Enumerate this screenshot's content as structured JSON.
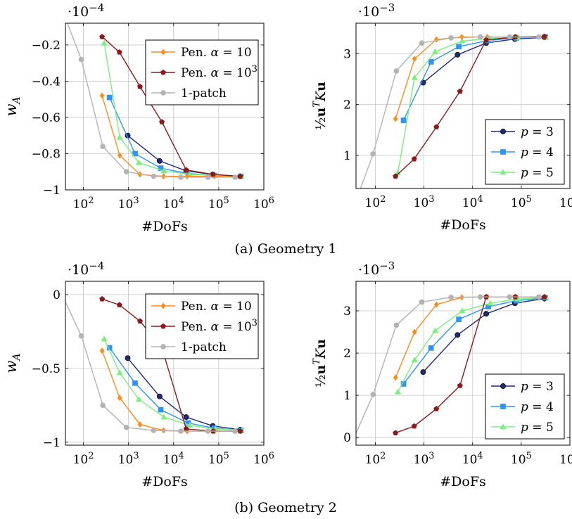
{
  "captions": [
    "(a) Geometry 1",
    "(b) Geometry 2"
  ],
  "colors": {
    "pen10": "#ff8c1a",
    "pen1000": "#8b1a1a",
    "patch1": "#b3b3b3",
    "p3": "#1e2a7a",
    "p4": "#2f93f5",
    "p5": "#7cf07c"
  },
  "chart_data": [
    {
      "type": "line",
      "panel": "(a) Geometry 1",
      "xscale": "log",
      "xlim": [
        40,
        1000000
      ],
      "ylim": [
        -1,
        -0.08
      ],
      "xlabel": "#DoFs",
      "ylabel": "w_A",
      "yscale_label": "·10^−4",
      "yticks": [
        -1,
        -0.8,
        -0.6,
        -0.4,
        -0.2
      ],
      "ytick_labels": [
        "−1",
        "−0.8",
        "−0.6",
        "−0.4",
        "−0.2"
      ],
      "xticks": [
        100,
        1000,
        10000,
        100000,
        1000000
      ],
      "xtick_labels": [
        "10^2",
        "10^3",
        "10^4",
        "10^5",
        "10^6"
      ],
      "grid": true,
      "legend_placement": "top-right",
      "series": [
        {
          "name": "p = 3",
          "key": "p3",
          "marker": "circle",
          "x": [
            960,
            4900,
            19000,
            74000,
            300000
          ],
          "y": [
            -0.7,
            -0.84,
            -0.895,
            -0.915,
            -0.925
          ]
        },
        {
          "name": "p = 4",
          "key": "p4",
          "marker": "square",
          "x": [
            380,
            1400,
            5200,
            21000,
            80000,
            310000
          ],
          "y": [
            -0.49,
            -0.8,
            -0.88,
            -0.91,
            -0.92,
            -0.925
          ]
        },
        {
          "name": "p = 5",
          "key": "p5",
          "marker": "triangle",
          "x": [
            290,
            640,
            1700,
            6100,
            23000,
            85000,
            320000
          ],
          "y": [
            -0.19,
            -0.71,
            -0.85,
            -0.895,
            -0.915,
            -0.92,
            -0.925
          ]
        },
        {
          "name": "Pen. α = 10",
          "key": "pen10",
          "marker": "diamond",
          "x": [
            260,
            640,
            1800,
            6000,
            20000,
            80000,
            300000
          ],
          "y": [
            -0.48,
            -0.81,
            -0.915,
            -0.925,
            -0.925,
            -0.925,
            -0.925
          ]
        },
        {
          "name": "Pen. α = 10^3",
          "key": "pen1000",
          "marker": "pentagon",
          "x": [
            260,
            630,
            1800,
            5500,
            19000,
            75000,
            300000
          ],
          "y": [
            -0.155,
            -0.24,
            -0.43,
            -0.625,
            -0.89,
            -0.915,
            -0.925
          ]
        },
        {
          "name": "1-patch",
          "key": "patch1",
          "marker": "circle",
          "x": [
            28,
            90,
            270,
            900,
            3600,
            14400,
            57600,
            230000
          ],
          "y": [
            0.05,
            -0.28,
            -0.76,
            -0.9,
            -0.925,
            -0.93,
            -0.93,
            -0.93
          ]
        }
      ]
    },
    {
      "type": "line",
      "panel": "(a) Geometry 1",
      "xscale": "log",
      "xlim": [
        40,
        1000000
      ],
      "ylim": [
        0.35,
        3.6
      ],
      "xlabel": "#DoFs",
      "ylabel": "½uᵀKu",
      "yscale_label": "·10^−3",
      "yticks": [
        1,
        2,
        3
      ],
      "ytick_labels": [
        "1",
        "2",
        "3"
      ],
      "xticks": [
        100,
        1000,
        10000,
        100000,
        1000000
      ],
      "xtick_labels": [
        "10^2",
        "10^3",
        "10^4",
        "10^5",
        "10^6"
      ],
      "grid": true,
      "legend_placement": "bottom-right",
      "series": [
        {
          "name": "p = 3",
          "key": "p3",
          "marker": "circle",
          "x": [
            960,
            4900,
            19000,
            74000,
            300000
          ],
          "y": [
            2.43,
            2.98,
            3.21,
            3.29,
            3.32
          ]
        },
        {
          "name": "p = 4",
          "key": "p4",
          "marker": "square",
          "x": [
            380,
            1400,
            5200,
            21000,
            80000,
            310000
          ],
          "y": [
            1.69,
            2.84,
            3.14,
            3.26,
            3.31,
            3.33
          ]
        },
        {
          "name": "p = 5",
          "key": "p5",
          "marker": "triangle",
          "x": [
            290,
            640,
            1700,
            6100,
            23000,
            85000,
            320000
          ],
          "y": [
            0.66,
            2.53,
            3.04,
            3.25,
            3.3,
            3.32,
            3.33
          ]
        },
        {
          "name": "Pen. α = 10",
          "key": "pen10",
          "marker": "diamond",
          "x": [
            260,
            640,
            1800,
            6000,
            20000,
            80000,
            300000
          ],
          "y": [
            1.72,
            2.9,
            3.28,
            3.33,
            3.33,
            3.33,
            3.33
          ]
        },
        {
          "name": "Pen. α = 10^3",
          "key": "pen1000",
          "marker": "pentagon",
          "x": [
            260,
            630,
            1800,
            5500,
            19000,
            75000,
            300000
          ],
          "y": [
            0.59,
            0.93,
            1.56,
            2.26,
            3.27,
            3.33,
            3.34
          ]
        },
        {
          "name": "1-patch",
          "key": "patch1",
          "marker": "circle",
          "x": [
            28,
            90,
            270,
            900,
            3600,
            14400,
            57600,
            230000
          ],
          "y": [
            -0.3,
            1.03,
            2.66,
            3.21,
            3.31,
            3.33,
            3.33,
            3.33
          ]
        }
      ]
    },
    {
      "type": "line",
      "panel": "(b) Geometry 2",
      "xscale": "log",
      "xlim": [
        40,
        1000000
      ],
      "ylim": [
        -1.02,
        0.09
      ],
      "xlabel": "#DoFs",
      "ylabel": "w_A",
      "yscale_label": "·10^−4",
      "yticks": [
        -1,
        -0.5,
        0
      ],
      "ytick_labels": [
        "−1",
        "−0.5",
        "0"
      ],
      "xticks": [
        100,
        1000,
        10000,
        100000,
        1000000
      ],
      "xtick_labels": [
        "10^2",
        "10^3",
        "10^4",
        "10^5",
        "10^6"
      ],
      "grid": true,
      "legend_placement": "top-right",
      "series": [
        {
          "name": "p = 3",
          "key": "p3",
          "marker": "circle",
          "x": [
            960,
            4900,
            19000,
            74000,
            300000
          ],
          "y": [
            -0.43,
            -0.69,
            -0.83,
            -0.89,
            -0.915
          ]
        },
        {
          "name": "p = 4",
          "key": "p4",
          "marker": "square",
          "x": [
            380,
            1400,
            5200,
            21000,
            80000,
            310000
          ],
          "y": [
            -0.36,
            -0.6,
            -0.78,
            -0.87,
            -0.905,
            -0.92
          ]
        },
        {
          "name": "p = 5",
          "key": "p5",
          "marker": "triangle",
          "x": [
            290,
            640,
            1700,
            6100,
            23000,
            85000,
            320000
          ],
          "y": [
            -0.3,
            -0.53,
            -0.71,
            -0.83,
            -0.885,
            -0.91,
            -0.92
          ]
        },
        {
          "name": "Pen. α = 10",
          "key": "pen10",
          "marker": "diamond",
          "x": [
            260,
            640,
            1800,
            6000,
            20000,
            80000,
            300000
          ],
          "y": [
            -0.38,
            -0.7,
            -0.88,
            -0.92,
            -0.925,
            -0.925,
            -0.925
          ]
        },
        {
          "name": "Pen. α = 10^3",
          "key": "pen1000",
          "marker": "pentagon",
          "x": [
            260,
            630,
            1800,
            5500,
            19000,
            75000,
            300000
          ],
          "y": [
            -0.03,
            -0.07,
            -0.18,
            -0.36,
            -0.91,
            -0.925,
            -0.925
          ]
        },
        {
          "name": "1-patch",
          "key": "patch1",
          "marker": "circle",
          "x": [
            28,
            90,
            270,
            900,
            3600,
            14400,
            57600,
            230000
          ],
          "y": [
            0.05,
            -0.28,
            -0.75,
            -0.9,
            -0.92,
            -0.925,
            -0.925,
            -0.925
          ]
        }
      ]
    },
    {
      "type": "line",
      "panel": "(b) Geometry 2",
      "xscale": "log",
      "xlim": [
        40,
        1000000
      ],
      "ylim": [
        -0.18,
        3.7
      ],
      "xlabel": "#DoFs",
      "ylabel": "½uᵀKu",
      "yscale_label": "·10^−3",
      "yticks": [
        0,
        1,
        2,
        3
      ],
      "ytick_labels": [
        "0",
        "1",
        "2",
        "3"
      ],
      "xticks": [
        100,
        1000,
        10000,
        100000,
        1000000
      ],
      "xtick_labels": [
        "10^2",
        "10^3",
        "10^4",
        "10^5",
        "10^6"
      ],
      "grid": true,
      "legend_placement": "bottom-right",
      "series": [
        {
          "name": "p = 3",
          "key": "p3",
          "marker": "circle",
          "x": [
            960,
            4900,
            19000,
            74000,
            300000
          ],
          "y": [
            1.55,
            2.43,
            2.93,
            3.18,
            3.29
          ]
        },
        {
          "name": "p = 4",
          "key": "p4",
          "marker": "square",
          "x": [
            380,
            1400,
            5200,
            21000,
            80000,
            310000
          ],
          "y": [
            1.27,
            2.12,
            2.8,
            3.1,
            3.24,
            3.31
          ]
        },
        {
          "name": "p = 5",
          "key": "p5",
          "marker": "triangle",
          "x": [
            290,
            640,
            1700,
            6100,
            23000,
            85000,
            320000
          ],
          "y": [
            1.08,
            1.84,
            2.53,
            3.0,
            3.18,
            3.28,
            3.32
          ]
        },
        {
          "name": "Pen. α = 10",
          "key": "pen10",
          "marker": "diamond",
          "x": [
            260,
            640,
            1800,
            6000,
            20000,
            80000,
            300000
          ],
          "y": [
            1.42,
            2.5,
            3.15,
            3.32,
            3.33,
            3.33,
            3.33
          ]
        },
        {
          "name": "Pen. α = 10^3",
          "key": "pen1000",
          "marker": "pentagon",
          "x": [
            260,
            630,
            1800,
            5500,
            19000,
            75000,
            300000
          ],
          "y": [
            0.11,
            0.27,
            0.68,
            1.23,
            3.33,
            3.33,
            3.33
          ]
        },
        {
          "name": "1-patch",
          "key": "patch1",
          "marker": "circle",
          "x": [
            28,
            90,
            270,
            900,
            3600,
            14400,
            57600,
            230000
          ],
          "y": [
            -0.3,
            1.02,
            2.66,
            3.21,
            3.32,
            3.33,
            3.33,
            3.33
          ]
        }
      ]
    }
  ]
}
